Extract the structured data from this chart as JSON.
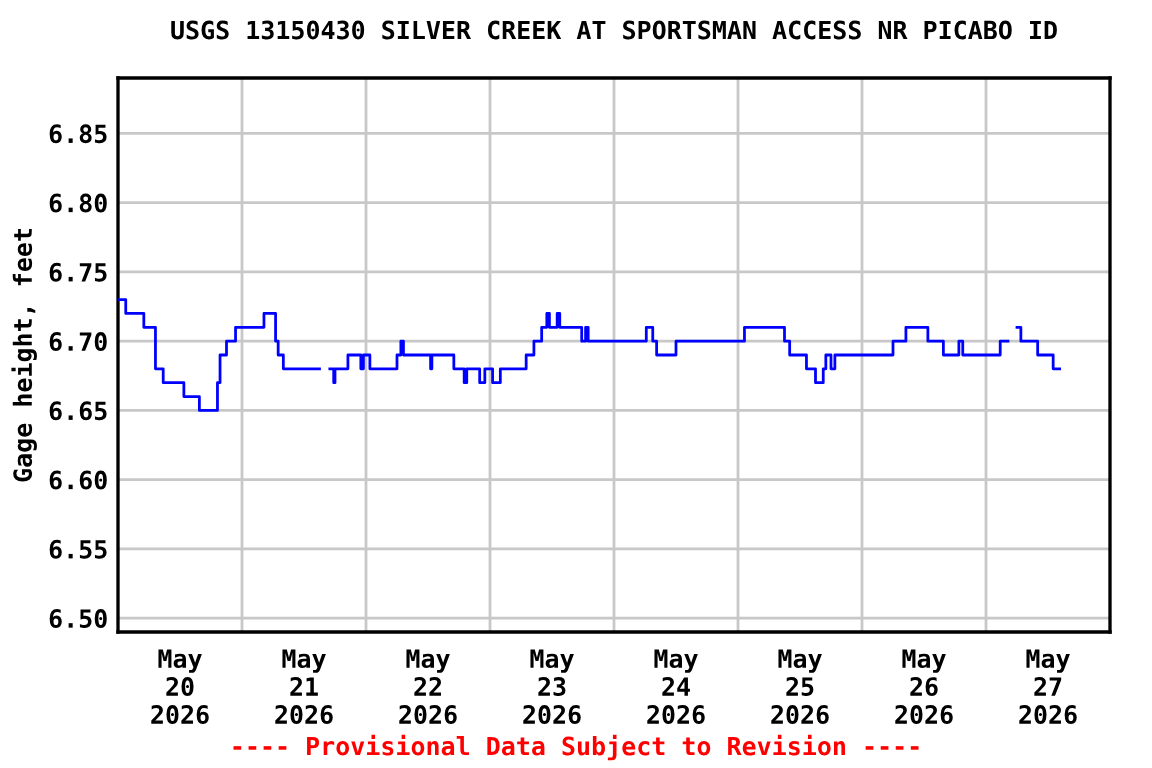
{
  "chart_data": {
    "type": "step",
    "title": "USGS 13150430 SILVER CREEK AT SPORTSMAN ACCESS NR PICABO ID",
    "ylabel": "Gage height, feet",
    "annotations": [
      "---- Provisional Data Subject to Revision ----"
    ],
    "x": [
      "2026-05-20T00:00",
      "2026-05-20T01:30",
      "2026-05-20T05:00",
      "2026-05-20T07:15",
      "2026-05-20T08:45",
      "2026-05-20T12:45",
      "2026-05-20T15:45",
      "2026-05-20T19:15",
      "2026-05-20T19:45",
      "2026-05-20T21:00",
      "2026-05-20T22:45",
      "2026-05-21T04:15",
      "2026-05-21T06:30",
      "2026-05-21T07:00",
      "2026-05-21T08:00",
      "2026-05-21T14:45",
      "2026-05-21T15:00",
      "2026-05-21T17:00",
      "2026-05-21T17:45",
      "2026-05-21T18:00",
      "2026-05-21T20:30",
      "2026-05-21T23:00",
      "2026-05-21T23:30",
      "2026-05-22T00:45",
      "2026-05-22T06:00",
      "2026-05-22T06:45",
      "2026-05-22T07:15",
      "2026-05-22T12:30",
      "2026-05-22T12:45",
      "2026-05-22T17:00",
      "2026-05-22T19:00",
      "2026-05-22T19:30",
      "2026-05-22T22:00",
      "2026-05-22T23:00",
      "2026-05-23T00:30",
      "2026-05-23T02:00",
      "2026-05-23T07:00",
      "2026-05-23T08:30",
      "2026-05-23T10:00",
      "2026-05-23T11:00",
      "2026-05-23T11:30",
      "2026-05-23T13:00",
      "2026-05-23T13:30",
      "2026-05-23T17:45",
      "2026-05-23T18:30",
      "2026-05-23T19:00",
      "2026-05-24T06:15",
      "2026-05-24T07:30",
      "2026-05-24T08:15",
      "2026-05-24T12:00",
      "2026-05-25T01:15",
      "2026-05-25T09:00",
      "2026-05-25T10:00",
      "2026-05-25T13:15",
      "2026-05-25T15:00",
      "2026-05-25T16:30",
      "2026-05-25T17:00",
      "2026-05-25T18:00",
      "2026-05-25T18:45",
      "2026-05-26T06:00",
      "2026-05-26T08:30",
      "2026-05-26T12:45",
      "2026-05-26T15:45",
      "2026-05-26T18:45",
      "2026-05-26T19:30",
      "2026-05-27T02:45",
      "2026-05-27T04:00",
      "2026-05-27T04:15",
      "2026-05-27T06:00",
      "2026-05-27T06:45",
      "2026-05-27T10:00",
      "2026-05-27T13:00",
      "2026-05-27T14:15"
    ],
    "series": [
      {
        "color": "#0000ff",
        "values": [
          6.73,
          6.72,
          6.71,
          6.68,
          6.67,
          6.66,
          6.65,
          6.67,
          6.69,
          6.7,
          6.71,
          6.72,
          6.7,
          6.69,
          6.68,
          6.68,
          null,
          6.68,
          6.67,
          6.68,
          6.69,
          6.68,
          6.69,
          6.68,
          6.69,
          6.7,
          6.69,
          6.68,
          6.69,
          6.68,
          6.67,
          6.68,
          6.67,
          6.68,
          6.67,
          6.68,
          6.69,
          6.7,
          6.71,
          6.72,
          6.71,
          6.72,
          6.71,
          6.7,
          6.71,
          6.7,
          6.71,
          6.7,
          6.69,
          6.7,
          6.71,
          6.7,
          6.69,
          6.68,
          6.67,
          6.68,
          6.69,
          6.68,
          6.69,
          6.7,
          6.71,
          6.7,
          6.69,
          6.7,
          6.69,
          6.7,
          6.7,
          null,
          6.71,
          6.7,
          6.69,
          6.68,
          6.68
        ]
      }
    ],
    "xlim": [
      "2026-05-20T00:00",
      "2026-05-28T00:00"
    ],
    "xticks": [
      {
        "value": "2026-05-20T12:00",
        "label": "May\n20\n2026"
      },
      {
        "value": "2026-05-21T12:00",
        "label": "May\n21\n2026"
      },
      {
        "value": "2026-05-22T12:00",
        "label": "May\n22\n2026"
      },
      {
        "value": "2026-05-23T12:00",
        "label": "May\n23\n2026"
      },
      {
        "value": "2026-05-24T12:00",
        "label": "May\n24\n2026"
      },
      {
        "value": "2026-05-25T12:00",
        "label": "May\n25\n2026"
      },
      {
        "value": "2026-05-26T12:00",
        "label": "May\n26\n2026"
      },
      {
        "value": "2026-05-27T12:00",
        "label": "May\n27\n2026"
      },
      {
        "value": "2026-05-21T00:00",
        "label": null
      },
      {
        "value": "2026-05-22T00:00",
        "label": null
      },
      {
        "value": "2026-05-23T00:00",
        "label": null
      },
      {
        "value": "2026-05-24T00:00",
        "label": null
      },
      {
        "value": "2026-05-25T00:00",
        "label": null
      },
      {
        "value": "2026-05-26T00:00",
        "label": null
      },
      {
        "value": "2026-05-27T00:00",
        "label": null
      }
    ],
    "ylim": [
      6.49,
      6.89
    ],
    "yticks": [
      {
        "value": 6.5,
        "label": "6.50"
      },
      {
        "value": 6.55,
        "label": "6.55"
      },
      {
        "value": 6.6,
        "label": "6.60"
      },
      {
        "value": 6.65,
        "label": "6.65"
      },
      {
        "value": 6.7,
        "label": "6.70"
      },
      {
        "value": 6.75,
        "label": "6.75"
      },
      {
        "value": 6.8,
        "label": "6.80"
      },
      {
        "value": 6.85,
        "label": "6.85"
      }
    ],
    "grid": true,
    "legend": false,
    "marker": "none",
    "line_style": "solid"
  }
}
